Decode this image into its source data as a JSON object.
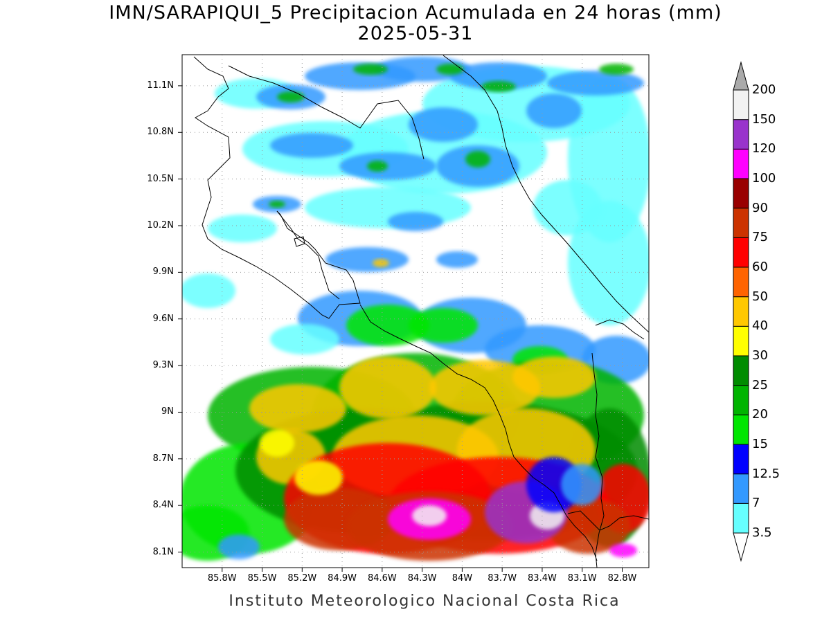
{
  "title": {
    "line1": "IMN/SARAPIQUI_5 Precipitacion Acumulada en 24 horas (mm)",
    "line2": "2025-05-31"
  },
  "footer": "Instituto Meteorologico Nacional Costa Rica",
  "map": {
    "type": "precipitation-contour-map",
    "lat_range": [
      8.0,
      11.3
    ],
    "lon_range": [
      -86.1,
      -82.6
    ],
    "grid": "dotted",
    "lat_ticks": [
      {
        "label": "11.1N",
        "value": 11.1
      },
      {
        "label": "10.8N",
        "value": 10.8
      },
      {
        "label": "10.5N",
        "value": 10.5
      },
      {
        "label": "10.2N",
        "value": 10.2
      },
      {
        "label": "9.9N",
        "value": 9.9
      },
      {
        "label": "9.6N",
        "value": 9.6
      },
      {
        "label": "9.3N",
        "value": 9.3
      },
      {
        "label": "9N",
        "value": 9.0
      },
      {
        "label": "8.7N",
        "value": 8.7
      },
      {
        "label": "8.4N",
        "value": 8.4
      },
      {
        "label": "8.1N",
        "value": 8.1
      }
    ],
    "lon_ticks": [
      {
        "label": "85.8W",
        "value": -85.8
      },
      {
        "label": "85.5W",
        "value": -85.5
      },
      {
        "label": "85.2W",
        "value": -85.2
      },
      {
        "label": "84.9W",
        "value": -84.9
      },
      {
        "label": "84.6W",
        "value": -84.6
      },
      {
        "label": "84.3W",
        "value": -84.3
      },
      {
        "label": "84W",
        "value": -84.0
      },
      {
        "label": "83.7W",
        "value": -83.7
      },
      {
        "label": "83.4W",
        "value": -83.4
      },
      {
        "label": "83.1W",
        "value": -83.1
      },
      {
        "label": "82.8W",
        "value": -82.8
      }
    ]
  },
  "colorbar": {
    "levels": [
      "3.5",
      "7",
      "12.5",
      "15",
      "20",
      "25",
      "30",
      "40",
      "50",
      "60",
      "75",
      "90",
      "100",
      "120",
      "150",
      "200"
    ],
    "colors": [
      "#ffffff",
      "#66ffff",
      "#3399ff",
      "#0000ff",
      "#00e600",
      "#00b400",
      "#008c00",
      "#ffff00",
      "#ffc800",
      "#ff6400",
      "#ff0000",
      "#cc3300",
      "#990000",
      "#ff00ff",
      "#9933cc",
      "#f2f2f2",
      "#aaaaaa"
    ]
  }
}
